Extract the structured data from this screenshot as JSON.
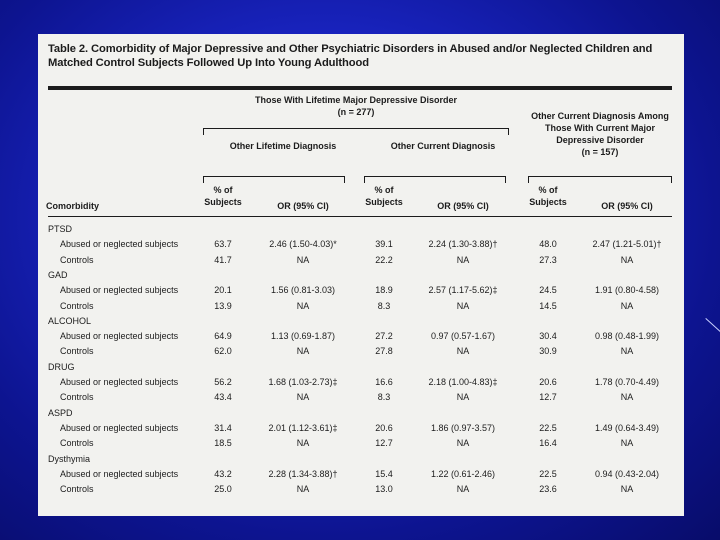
{
  "title": "Table 2. Comorbidity of Major Depressive and Other Psychiatric Disorders in Abused and/or Neglected Children and Matched Control Subjects Followed Up Into Young Adulthood",
  "headers": {
    "lifetime_group": "Those With Lifetime Major Depressive Disorder",
    "lifetime_n": "(n = 277)",
    "other_lifetime": "Other Lifetime Diagnosis",
    "other_current": "Other Current Diagnosis",
    "current_group": "Other Current Diagnosis Among Those With Current Major Depressive Disorder",
    "current_n": "(n = 157)",
    "comorbidity": "Comorbidity",
    "pct": "% of Subjects",
    "or": "OR (95% CI)"
  },
  "groups": [
    {
      "name": "PTSD",
      "rows": [
        {
          "label": "Abused or neglected subjects",
          "v": [
            "63.7",
            "2.46 (1.50-4.03)*",
            "39.1",
            "2.24 (1.30-3.88)†",
            "48.0",
            "2.47 (1.21-5.01)†"
          ]
        },
        {
          "label": "Controls",
          "v": [
            "41.7",
            "NA",
            "22.2",
            "NA",
            "27.3",
            "NA"
          ]
        }
      ]
    },
    {
      "name": "GAD",
      "rows": [
        {
          "label": "Abused or neglected subjects",
          "v": [
            "20.1",
            "1.56 (0.81-3.03)",
            "18.9",
            "2.57 (1.17-5.62)‡",
            "24.5",
            "1.91 (0.80-4.58)"
          ]
        },
        {
          "label": "Controls",
          "v": [
            "13.9",
            "NA",
            "8.3",
            "NA",
            "14.5",
            "NA"
          ]
        }
      ]
    },
    {
      "name": "ALCOHOL",
      "rows": [
        {
          "label": "Abused or neglected subjects",
          "v": [
            "64.9",
            "1.13 (0.69-1.87)",
            "27.2",
            "0.97 (0.57-1.67)",
            "30.4",
            "0.98 (0.48-1.99)"
          ]
        },
        {
          "label": "Controls",
          "v": [
            "62.0",
            "NA",
            "27.8",
            "NA",
            "30.9",
            "NA"
          ]
        }
      ]
    },
    {
      "name": "DRUG",
      "rows": [
        {
          "label": "Abused or neglected subjects",
          "v": [
            "56.2",
            "1.68 (1.03-2.73)‡",
            "16.6",
            "2.18 (1.00-4.83)‡",
            "20.6",
            "1.78 (0.70-4.49)"
          ]
        },
        {
          "label": "Controls",
          "v": [
            "43.4",
            "NA",
            "8.3",
            "NA",
            "12.7",
            "NA"
          ]
        }
      ]
    },
    {
      "name": "ASPD",
      "rows": [
        {
          "label": "Abused or neglected subjects",
          "v": [
            "31.4",
            "2.01 (1.12-3.61)‡",
            "20.6",
            "1.86 (0.97-3.57)",
            "22.5",
            "1.49 (0.64-3.49)"
          ]
        },
        {
          "label": "Controls",
          "v": [
            "18.5",
            "NA",
            "12.7",
            "NA",
            "16.4",
            "NA"
          ]
        }
      ]
    },
    {
      "name": "Dysthymia",
      "rows": [
        {
          "label": "Abused or neglected subjects",
          "v": [
            "43.2",
            "2.28 (1.34-3.88)†",
            "15.4",
            "1.22 (0.61-2.46)",
            "22.5",
            "0.94 (0.43-2.04)"
          ]
        },
        {
          "label": "Controls",
          "v": [
            "25.0",
            "NA",
            "13.0",
            "NA",
            "23.6",
            "NA"
          ]
        }
      ]
    }
  ]
}
